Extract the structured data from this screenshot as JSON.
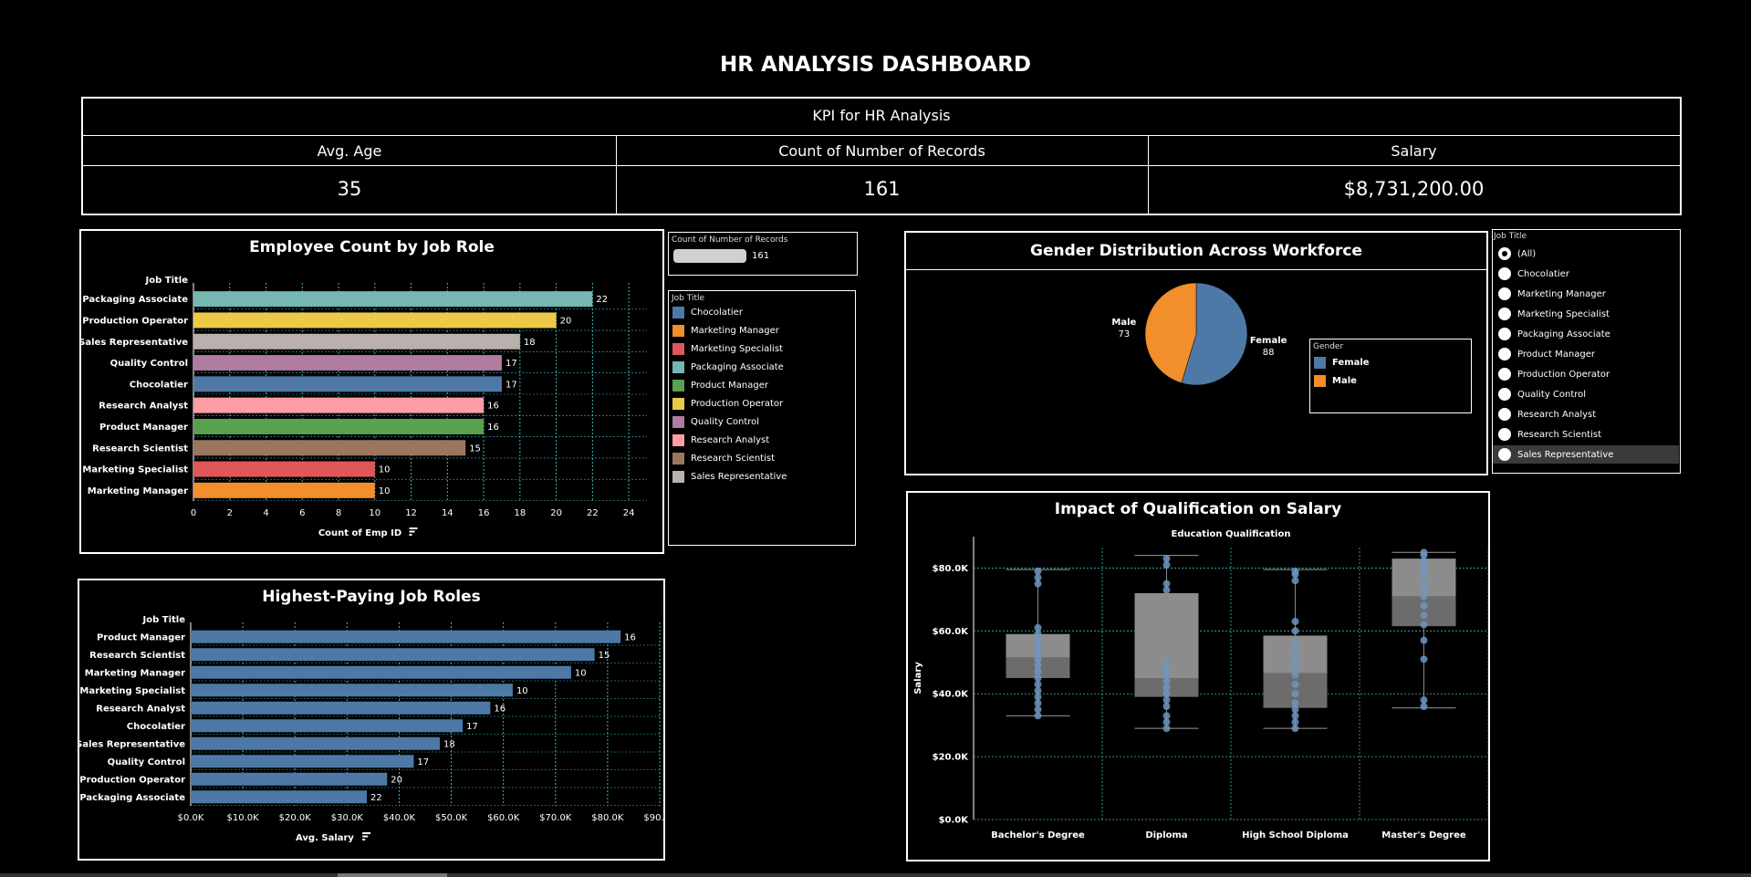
{
  "dashboard_title": "HR ANALYSIS DASHBOARD",
  "kpi": {
    "header": "KPI for HR Analysis",
    "columns": [
      {
        "label": "Avg. Age",
        "value": "35"
      },
      {
        "label": "Count of Number of Records",
        "value": "161"
      },
      {
        "label": "Salary",
        "value": "$8,731,200.00"
      }
    ]
  },
  "colors": {
    "Chocolatier": "#4e79a7",
    "Marketing Manager": "#f28e2b",
    "Marketing Specialist": "#e15759",
    "Packaging Associate": "#76b7b2",
    "Product Manager": "#59a14f",
    "Production Operator": "#edc948",
    "Quality Control": "#b07aa1",
    "Research Analyst": "#ff9da7",
    "Research Scientist": "#9c755f",
    "Sales Representative": "#bab0ac",
    "salary_bar": "#4e79a7",
    "female": "#4e79a7",
    "male": "#f28e2b"
  },
  "size_legend": {
    "title": "Count of Number of Records",
    "value": "161"
  },
  "color_legend": {
    "title": "Job Title",
    "items": [
      "Chocolatier",
      "Marketing Manager",
      "Marketing Specialist",
      "Packaging Associate",
      "Product Manager",
      "Production Operator",
      "Quality Control",
      "Research Analyst",
      "Research Scientist",
      "Sales Representative"
    ]
  },
  "gender_legend": {
    "title": "Gender",
    "items": [
      "Female",
      "Male"
    ]
  },
  "job_filter": {
    "title": "Job Title",
    "selected": "(All)",
    "options": [
      "(All)",
      "Chocolatier",
      "Marketing Manager",
      "Marketing Specialist",
      "Packaging Associate",
      "Product Manager",
      "Production Operator",
      "Quality Control",
      "Research Analyst",
      "Research Scientist",
      "Sales Representative"
    ]
  },
  "chart_data": [
    {
      "id": "employee_count",
      "type": "bar",
      "orientation": "horizontal",
      "title": "Employee Count by Job Role",
      "ylabel": "Job Title",
      "xlabel": "Count of Emp ID",
      "categories": [
        "Packaging Associate",
        "Production Operator",
        "Sales Representative",
        "Quality Control",
        "Chocolatier",
        "Research Analyst",
        "Product Manager",
        "Research Scientist",
        "Marketing Specialist",
        "Marketing Manager"
      ],
      "values": [
        22,
        20,
        18,
        17,
        17,
        16,
        16,
        15,
        10,
        10
      ],
      "xlim": [
        0,
        25
      ],
      "ticks": [
        0,
        2,
        4,
        6,
        8,
        10,
        12,
        14,
        16,
        18,
        20,
        22,
        24
      ],
      "tick_labels": [
        "0",
        "2",
        "4",
        "6",
        "8",
        "10",
        "12",
        "14",
        "16",
        "18",
        "20",
        "22",
        "24"
      ]
    },
    {
      "id": "salary_by_role",
      "type": "bar",
      "orientation": "horizontal",
      "title": "Highest-Paying Job Roles",
      "ylabel": "Job Title",
      "xlabel": "Avg. Salary",
      "categories": [
        "Product Manager",
        "Research Scientist",
        "Marketing Manager",
        "Marketing Specialist",
        "Research Analyst",
        "Chocolatier",
        "Sales Representative",
        "Quality Control",
        "Production Operator",
        "Packaging Associate"
      ],
      "values": [
        82500,
        77500,
        73000,
        61800,
        57500,
        52200,
        47800,
        42800,
        37700,
        33800
      ],
      "labels": [
        "16",
        "15",
        "10",
        "10",
        "16",
        "17",
        "18",
        "17",
        "20",
        "22"
      ],
      "xlim": [
        0,
        90000
      ],
      "ticks": [
        0,
        10000,
        20000,
        30000,
        40000,
        50000,
        60000,
        70000,
        80000,
        90000
      ],
      "tick_labels": [
        "$0.0K",
        "$10.0K",
        "$20.0K",
        "$30.0K",
        "$40.0K",
        "$50.0K",
        "$60.0K",
        "$70.0K",
        "$80.0K",
        "$90.0K"
      ]
    },
    {
      "id": "gender_pie",
      "type": "pie",
      "title": "Gender Distribution Across Workforce",
      "slices": [
        {
          "name": "Female",
          "value": 88
        },
        {
          "name": "Male",
          "value": 73
        }
      ]
    },
    {
      "id": "qualification_box",
      "type": "box",
      "title": "Impact of Qualification on Salary",
      "xlabel": "Education Qualification",
      "ylabel": "Salary",
      "ylim": [
        0,
        90000
      ],
      "ticks": [
        0,
        20000,
        40000,
        60000,
        80000
      ],
      "tick_labels": [
        "$0.0K",
        "$20.0K",
        "$40.0K",
        "$60.0K",
        "$80.0K"
      ],
      "categories": [
        "Bachelor's Degree",
        "Diploma",
        "High School Diploma",
        "Master's Degree"
      ],
      "boxes": [
        {
          "min": 33000,
          "q1": 45000,
          "median": 51500,
          "q3": 59000,
          "max": 79500,
          "points": [
            33000,
            35000,
            37000,
            39000,
            41000,
            43000,
            45000,
            47000,
            49000,
            51000,
            53000,
            55000,
            57000,
            59000,
            61000,
            75000,
            77000,
            79000
          ]
        },
        {
          "min": 29000,
          "q1": 39000,
          "median": 45000,
          "q3": 72000,
          "max": 84000,
          "points": [
            29000,
            31000,
            33000,
            36000,
            38000,
            40000,
            42000,
            44000,
            46000,
            48000,
            50000,
            73000,
            75000,
            81000,
            83000
          ]
        },
        {
          "min": 29000,
          "q1": 35500,
          "median": 46500,
          "q3": 58500,
          "max": 79500,
          "points": [
            29000,
            31000,
            33000,
            35000,
            37000,
            40000,
            43000,
            46000,
            49000,
            51000,
            53000,
            56000,
            60000,
            63000,
            76000,
            78000,
            79000
          ]
        },
        {
          "min": 35500,
          "q1": 61500,
          "median": 71000,
          "q3": 83000,
          "max": 85000,
          "points": [
            36000,
            38000,
            51000,
            57000,
            62000,
            65000,
            68000,
            71000,
            73000,
            75000,
            78000,
            80000,
            82000,
            84000,
            85000
          ]
        }
      ]
    }
  ]
}
